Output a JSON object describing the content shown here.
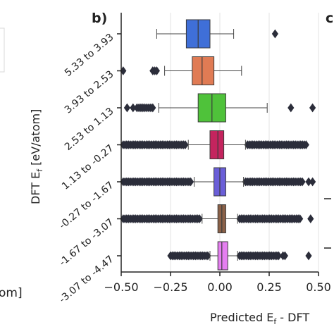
{
  "panel_label": "b)",
  "next_panel_label": "c",
  "left_fragment": "om]",
  "chart_data": {
    "type": "box",
    "orientation": "horizontal",
    "xlabel": "Predicted E",
    "xlabel_sub": "f",
    "xlabel_tail": " - DFT",
    "ylabel": "DFT E",
    "ylabel_sub": "f",
    "ylabel_tail": " [eV/atom]",
    "xlim": [
      -0.5,
      0.5
    ],
    "xticks": [
      -0.5,
      -0.25,
      0.0,
      0.25,
      0.5
    ],
    "xtick_labels": [
      "−0.50",
      "−0.25",
      "0.00",
      "0.25",
      "0.50"
    ],
    "grid": "vertical",
    "categories": [
      "5.33 to 3.93",
      "3.93 to 2.53",
      "2.53 to 1.13",
      "1.13 to -0.27",
      "-0.27 to -1.67",
      "-1.67 to -3.07",
      "-3.07 to -4.47"
    ],
    "boxes": [
      {
        "label": "5.33 to 3.93",
        "color": "#3f6fd8",
        "whisker_low": -0.32,
        "q1": -0.17,
        "median": -0.11,
        "q3": -0.05,
        "whisker_high": 0.07,
        "outliers": [
          0.28
        ]
      },
      {
        "label": "3.93 to 2.53",
        "color": "#e07b54",
        "whisker_low": -0.28,
        "q1": -0.14,
        "median": -0.09,
        "q3": -0.03,
        "whisker_high": 0.11,
        "outliers": [
          -0.49,
          -0.34,
          -0.33,
          -0.32
        ]
      },
      {
        "label": "2.53 to 1.13",
        "color": "#4fc23a",
        "whisker_low": -0.31,
        "q1": -0.11,
        "median": -0.04,
        "q3": 0.03,
        "whisker_high": 0.24,
        "outliers": [
          -0.47,
          -0.44,
          -0.42,
          -0.41,
          -0.4,
          -0.39,
          -0.38,
          -0.37,
          -0.36,
          -0.35,
          -0.34,
          0.36,
          0.47
        ]
      },
      {
        "label": "1.13 to -0.27",
        "color": "#c4245e",
        "whisker_low": -0.16,
        "q1": -0.05,
        "median": -0.01,
        "q3": 0.02,
        "whisker_high": 0.13,
        "outliers_range": [
          [
            -0.49,
            -0.17
          ],
          [
            0.14,
            0.44
          ]
        ]
      },
      {
        "label": "-0.27 to -1.67",
        "color": "#6a5ed8",
        "whisker_low": -0.13,
        "q1": -0.03,
        "median": 0.0,
        "q3": 0.03,
        "whisker_high": 0.12,
        "outliers_range": [
          [
            -0.49,
            -0.14
          ],
          [
            0.13,
            0.42
          ]
        ],
        "outliers": [
          0.45,
          0.47
        ]
      },
      {
        "label": "-1.67 to -3.07",
        "color": "#8b6148",
        "whisker_low": -0.09,
        "q1": -0.01,
        "median": 0.01,
        "q3": 0.03,
        "whisker_high": 0.09,
        "outliers_range": [
          [
            -0.49,
            -0.1
          ],
          [
            0.1,
            0.41
          ]
        ],
        "outliers": [
          0.46
        ]
      },
      {
        "label": "-3.07 to -4.47",
        "color": "#e57ef0",
        "whisker_low": -0.05,
        "q1": -0.01,
        "median": 0.01,
        "q3": 0.04,
        "whisker_high": 0.09,
        "outliers_range": [
          [
            -0.25,
            -0.06
          ],
          [
            0.1,
            0.3
          ]
        ],
        "outliers": [
          0.32,
          0.33,
          0.45
        ]
      }
    ]
  }
}
